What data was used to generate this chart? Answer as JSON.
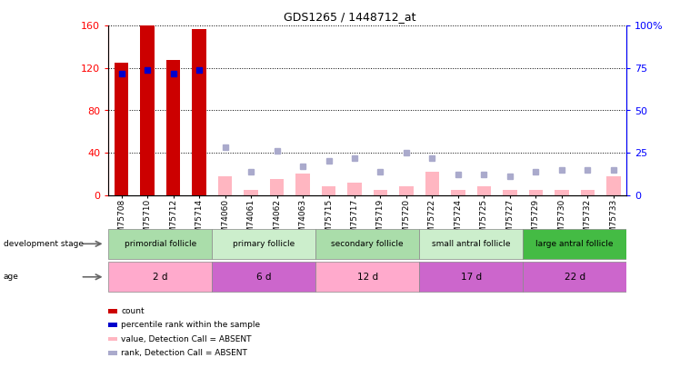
{
  "title": "GDS1265 / 1448712_at",
  "samples": [
    "GSM75708",
    "GSM75710",
    "GSM75712",
    "GSM75714",
    "GSM74060",
    "GSM74061",
    "GSM74062",
    "GSM74063",
    "GSM75715",
    "GSM75717",
    "GSM75719",
    "GSM75720",
    "GSM75722",
    "GSM75724",
    "GSM75725",
    "GSM75727",
    "GSM75729",
    "GSM75730",
    "GSM75732",
    "GSM75733"
  ],
  "count_values": [
    125,
    160,
    128,
    157,
    0,
    0,
    0,
    0,
    0,
    0,
    0,
    0,
    0,
    0,
    0,
    0,
    0,
    0,
    0,
    0
  ],
  "count_absent": [
    false,
    false,
    false,
    false,
    true,
    true,
    true,
    true,
    true,
    true,
    true,
    true,
    true,
    true,
    true,
    true,
    true,
    true,
    true,
    true
  ],
  "absent_bar_values": [
    0,
    0,
    0,
    0,
    18,
    5,
    15,
    20,
    8,
    12,
    5,
    8,
    22,
    5,
    8,
    5,
    5,
    5,
    5,
    18
  ],
  "rank_values_pct": [
    72,
    74,
    72,
    74,
    0,
    0,
    0,
    0,
    0,
    0,
    0,
    0,
    0,
    0,
    0,
    0,
    0,
    0,
    0,
    0
  ],
  "absent_rank_pct": [
    0,
    0,
    0,
    0,
    28,
    14,
    26,
    17,
    20,
    22,
    14,
    25,
    22,
    12,
    12,
    11,
    14,
    15,
    15,
    15
  ],
  "groups": [
    {
      "label": "primordial follicle",
      "start": 0,
      "end": 4,
      "color": "#AADDAA"
    },
    {
      "label": "primary follicle",
      "start": 4,
      "end": 8,
      "color": "#CCEECC"
    },
    {
      "label": "secondary follicle",
      "start": 8,
      "end": 12,
      "color": "#AADDAA"
    },
    {
      "label": "small antral follicle",
      "start": 12,
      "end": 16,
      "color": "#CCEECC"
    },
    {
      "label": "large antral follicle",
      "start": 16,
      "end": 20,
      "color": "#44BB44"
    }
  ],
  "ages": [
    {
      "label": "2 d",
      "start": 0,
      "end": 4,
      "color": "#FFAACC"
    },
    {
      "label": "6 d",
      "start": 4,
      "end": 8,
      "color": "#CC66CC"
    },
    {
      "label": "12 d",
      "start": 8,
      "end": 12,
      "color": "#FFAACC"
    },
    {
      "label": "17 d",
      "start": 12,
      "end": 16,
      "color": "#CC66CC"
    },
    {
      "label": "22 d",
      "start": 16,
      "end": 20,
      "color": "#CC66CC"
    }
  ],
  "ylim_left": [
    0,
    160
  ],
  "ylim_right": [
    0,
    100
  ],
  "left_ticks": [
    0,
    40,
    80,
    120,
    160
  ],
  "right_ticks": [
    0,
    25,
    50,
    75,
    100
  ],
  "bar_color_present": "#CC0000",
  "bar_color_absent": "#FFB6C1",
  "rank_color_present": "#0000CC",
  "rank_color_absent": "#AAAACC",
  "background_color": "#ffffff",
  "grid_color": "black",
  "strip_bg": "#C8C8C8"
}
